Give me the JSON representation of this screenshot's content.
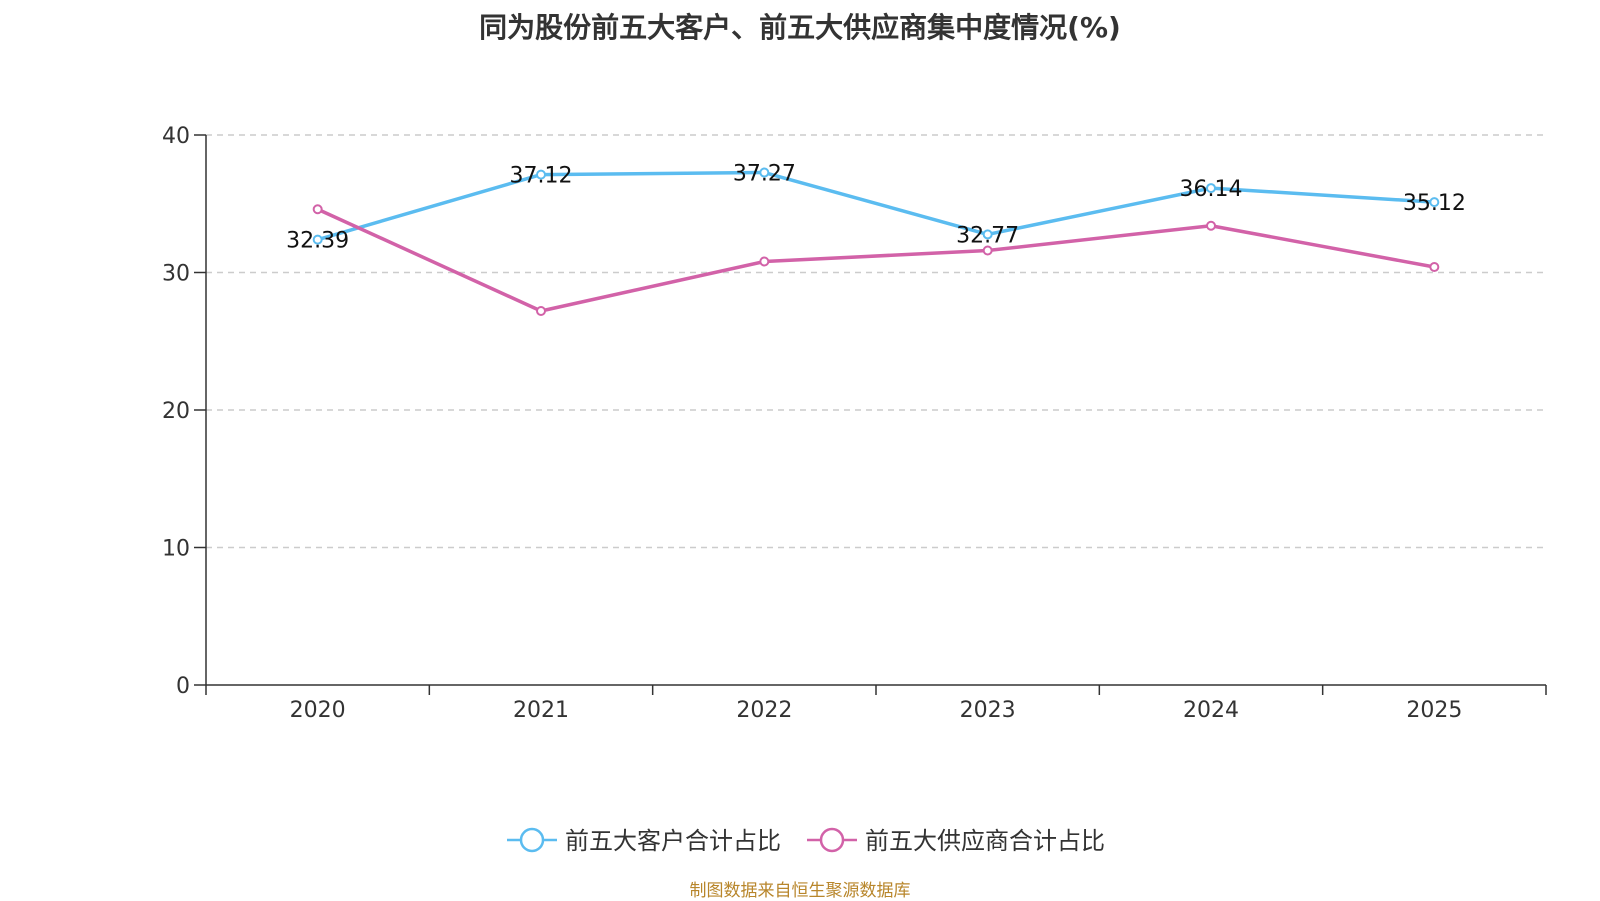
{
  "title": "同为股份前五大客户、前五大供应商集中度情况(%)",
  "source": "制图数据来自恒生聚源数据库",
  "colors": {
    "series1": "#5bbcf0",
    "series2": "#d262a8",
    "grid": "#cccccc",
    "axis": "#333333"
  },
  "chart_data": {
    "type": "line",
    "title": "同为股份前五大客户、前五大供应商集中度情况(%)",
    "categories": [
      "2020",
      "2021",
      "2022",
      "2023",
      "2024",
      "2025"
    ],
    "ylim": [
      0,
      40
    ],
    "yticks": [
      "0",
      "10",
      "20",
      "30",
      "40"
    ],
    "grid": true,
    "legend": "bottom-center",
    "series": [
      {
        "name": "前五大客户合计占比",
        "values": [
          32.39,
          37.12,
          37.27,
          32.77,
          36.14,
          35.12
        ],
        "labels": [
          "32.39",
          "37.12",
          "37.27",
          "32.77",
          "36.14",
          "35.12"
        ]
      },
      {
        "name": "前五大供应商合计占比",
        "values": [
          34.6,
          27.2,
          30.8,
          31.6,
          33.4,
          30.4
        ]
      }
    ]
  }
}
